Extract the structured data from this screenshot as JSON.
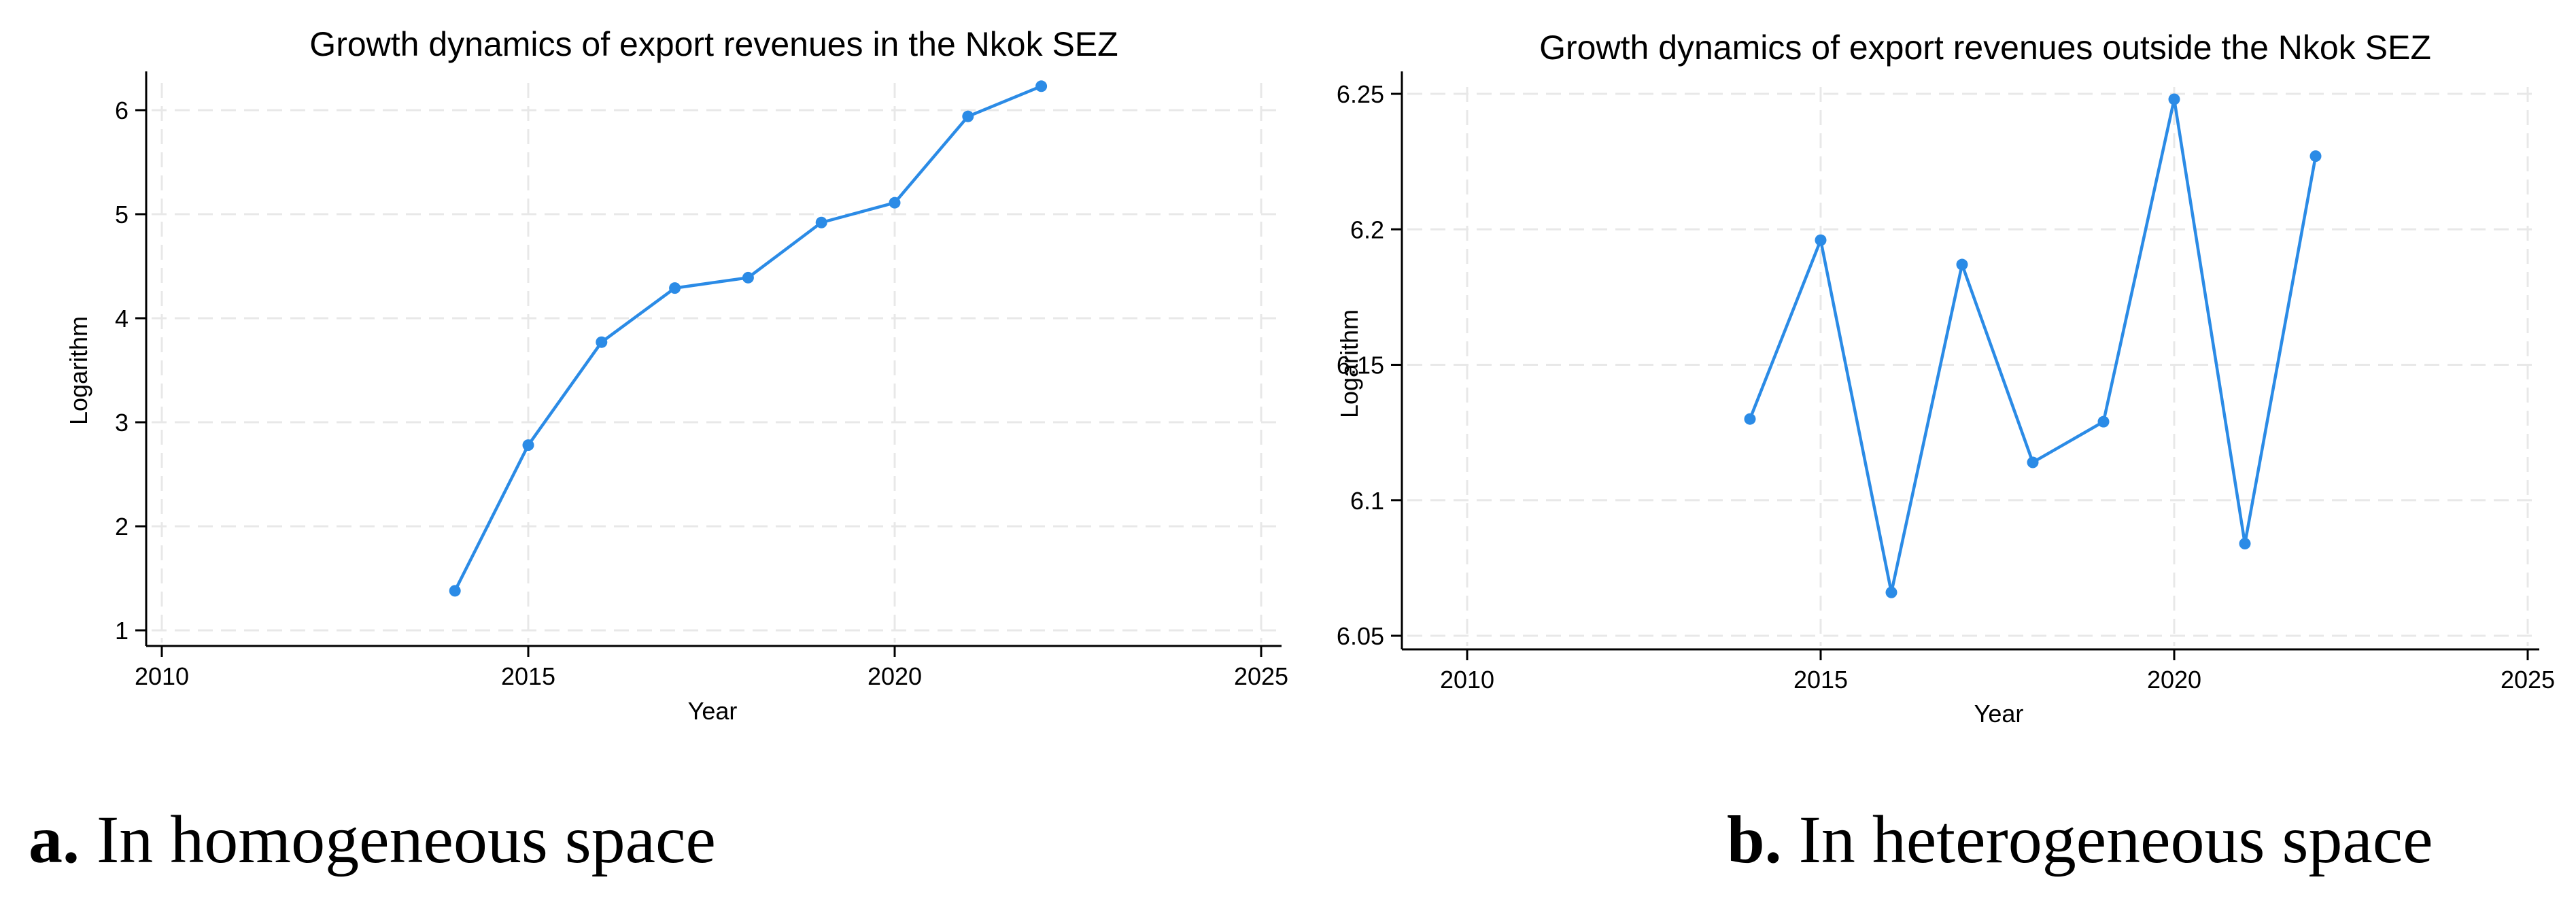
{
  "colors": {
    "line": "#2b8be6",
    "grid": "#e8e8e8",
    "axis": "#000000",
    "background": "#ffffff"
  },
  "chart_data": [
    {
      "id": "a",
      "type": "line",
      "title": "Growth dynamics of export revenues in the Nkok SEZ",
      "xlabel": "Year",
      "ylabel": "Logarithm",
      "xlim": [
        2010,
        2025
      ],
      "ylim": [
        0.9,
        6.35
      ],
      "xticks": [
        2010,
        2015,
        2020,
        2025
      ],
      "yticks": [
        1,
        2,
        3,
        4,
        5,
        6
      ],
      "ytick_labels": [
        "1",
        "2",
        "3",
        "4",
        "5",
        "6"
      ],
      "grid": true,
      "series": [
        {
          "name": "Nkok SEZ",
          "x": [
            2014,
            2015,
            2016,
            2017,
            2018,
            2019,
            2020,
            2021,
            2022
          ],
          "values": [
            1.38,
            2.78,
            3.77,
            4.29,
            4.39,
            4.92,
            5.11,
            5.94,
            6.23
          ]
        }
      ]
    },
    {
      "id": "b",
      "type": "line",
      "title": "Growth dynamics of export revenues outside the Nkok SEZ",
      "xlabel": "Year",
      "ylabel": "Logarithm",
      "xlim": [
        2010,
        2025
      ],
      "ylim": [
        6.047,
        6.253
      ],
      "xticks": [
        2010,
        2015,
        2020,
        2025
      ],
      "yticks": [
        6.05,
        6.1,
        6.15,
        6.2,
        6.25
      ],
      "ytick_labels": [
        "6.05",
        "6.1",
        "6.15",
        "6.2",
        "6.25"
      ],
      "grid": true,
      "series": [
        {
          "name": "Outside Nkok SEZ",
          "x": [
            2014,
            2015,
            2016,
            2017,
            2018,
            2019,
            2020,
            2021,
            2022
          ],
          "values": [
            6.13,
            6.196,
            6.066,
            6.187,
            6.114,
            6.129,
            6.248,
            6.084,
            6.227
          ]
        }
      ]
    }
  ],
  "captions": {
    "a": {
      "label": "a.",
      "text": "In homogeneous space"
    },
    "b": {
      "label": "b.",
      "text": "In heterogeneous space"
    }
  }
}
